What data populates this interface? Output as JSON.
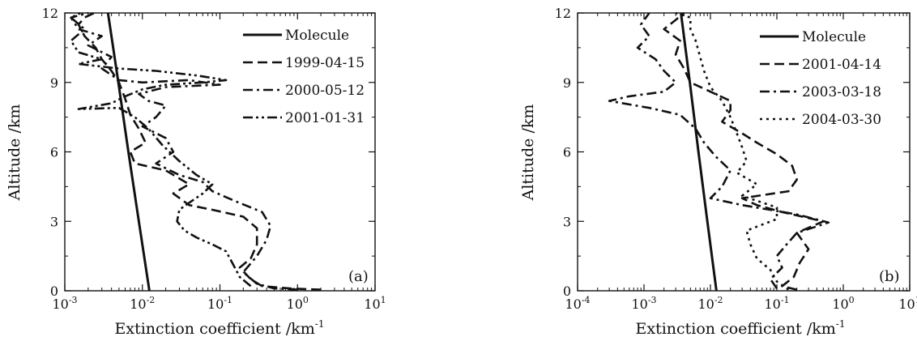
{
  "chart_data": [
    {
      "type": "line",
      "panel_label": "(a)",
      "xlabel": "Extinction coefficient /km",
      "xlabel_sup": "-1",
      "ylabel": "Altitude /km",
      "xscale": "log",
      "xlim": [
        0.001,
        10
      ],
      "ylim": [
        0,
        12
      ],
      "xticks": [
        {
          "v": 0.001,
          "base": "10",
          "exp": "-3"
        },
        {
          "v": 0.01,
          "base": "10",
          "exp": "-2"
        },
        {
          "v": 0.1,
          "base": "10",
          "exp": "-1"
        },
        {
          "v": 1,
          "base": "10",
          "exp": "0"
        },
        {
          "v": 10,
          "base": "10",
          "exp": "1"
        }
      ],
      "yticks": [
        0,
        3,
        6,
        9,
        12
      ],
      "legend_position": "top-right",
      "series": [
        {
          "name": "Molecule",
          "style": "solid",
          "points": [
            [
              0.0123,
              0
            ],
            [
              0.009,
              3
            ],
            [
              0.0066,
              6
            ],
            [
              0.0049,
              9
            ],
            [
              0.0036,
              12
            ]
          ]
        },
        {
          "name": "1999-04-15",
          "style": "dash",
          "points": [
            [
              2.0,
              0.05
            ],
            [
              0.8,
              0.1
            ],
            [
              0.35,
              0.2
            ],
            [
              0.25,
              0.5
            ],
            [
              0.18,
              1.0
            ],
            [
              0.25,
              1.4
            ],
            [
              0.3,
              2.0
            ],
            [
              0.3,
              2.7
            ],
            [
              0.2,
              3.2
            ],
            [
              0.08,
              3.5
            ],
            [
              0.04,
              3.7
            ],
            [
              0.025,
              4.2
            ],
            [
              0.04,
              4.6
            ],
            [
              0.02,
              5.2
            ],
            [
              0.008,
              5.5
            ],
            [
              0.007,
              6.0
            ],
            [
              0.011,
              6.4
            ],
            [
              0.009,
              7.0
            ],
            [
              0.007,
              7.6
            ],
            [
              0.006,
              8.3
            ],
            [
              0.005,
              9.0
            ],
            [
              0.004,
              9.5
            ],
            [
              0.003,
              10.0
            ],
            [
              0.0025,
              10.5
            ],
            [
              0.0018,
              11.0
            ],
            [
              0.0015,
              11.5
            ],
            [
              0.0018,
              11.8
            ],
            [
              0.0024,
              12
            ]
          ]
        },
        {
          "name": "2000-05-12",
          "style": "dashdot",
          "points": [
            [
              1.0,
              0.05
            ],
            [
              0.5,
              0.1
            ],
            [
              0.3,
              0.3
            ],
            [
              0.2,
              0.8
            ],
            [
              0.3,
              1.5
            ],
            [
              0.4,
              2.2
            ],
            [
              0.45,
              2.8
            ],
            [
              0.35,
              3.4
            ],
            [
              0.15,
              3.9
            ],
            [
              0.08,
              4.3
            ],
            [
              0.06,
              4.7
            ],
            [
              0.03,
              5.0
            ],
            [
              0.015,
              5.5
            ],
            [
              0.025,
              6.0
            ],
            [
              0.02,
              6.6
            ],
            [
              0.01,
              7.1
            ],
            [
              0.015,
              7.5
            ],
            [
              0.02,
              8.0
            ],
            [
              0.012,
              8.2
            ],
            [
              0.009,
              8.5
            ],
            [
              0.02,
              8.8
            ],
            [
              0.1,
              8.9
            ],
            [
              0.04,
              9.1
            ],
            [
              0.01,
              9.0
            ],
            [
              0.005,
              9.1
            ],
            [
              0.003,
              9.6
            ],
            [
              0.004,
              10.1
            ],
            [
              0.002,
              10.6
            ],
            [
              0.003,
              11.0
            ],
            [
              0.0015,
              11.3
            ],
            [
              0.0012,
              11.8
            ],
            [
              0.002,
              12
            ]
          ]
        },
        {
          "name": "2001-01-31",
          "style": "dashdotdot",
          "points": [
            [
              0.25,
              0.2
            ],
            [
              0.18,
              0.6
            ],
            [
              0.15,
              1.1
            ],
            [
              0.12,
              1.7
            ],
            [
              0.08,
              2.0
            ],
            [
              0.05,
              2.3
            ],
            [
              0.035,
              2.6
            ],
            [
              0.028,
              3.0
            ],
            [
              0.03,
              3.5
            ],
            [
              0.04,
              3.8
            ],
            [
              0.06,
              4.2
            ],
            [
              0.08,
              4.6
            ],
            [
              0.05,
              5.0
            ],
            [
              0.03,
              5.6
            ],
            [
              0.018,
              6.3
            ],
            [
              0.012,
              7.0
            ],
            [
              0.008,
              7.5
            ],
            [
              0.005,
              7.9
            ],
            [
              0.0015,
              7.85
            ],
            [
              0.004,
              8.1
            ],
            [
              0.006,
              8.4
            ],
            [
              0.01,
              8.7
            ],
            [
              0.02,
              8.9
            ],
            [
              0.06,
              9.0
            ],
            [
              0.12,
              9.1
            ],
            [
              0.05,
              9.3
            ],
            [
              0.015,
              9.5
            ],
            [
              0.005,
              9.6
            ],
            [
              0.0015,
              9.8
            ],
            [
              0.003,
              10.0
            ],
            [
              0.0015,
              10.3
            ],
            [
              0.0012,
              10.8
            ],
            [
              0.0018,
              11.3
            ],
            [
              0.0012,
              11.8
            ],
            [
              0.0016,
              12
            ]
          ]
        }
      ]
    },
    {
      "type": "line",
      "panel_label": "(b)",
      "xlabel": "Extinction coefficient /km",
      "xlabel_sup": "-1",
      "ylabel": "Altitude /km",
      "xscale": "log",
      "xlim": [
        0.0001,
        10
      ],
      "ylim": [
        0,
        12
      ],
      "xticks": [
        {
          "v": 0.0001,
          "base": "10",
          "exp": "-4"
        },
        {
          "v": 0.001,
          "base": "10",
          "exp": "-3"
        },
        {
          "v": 0.01,
          "base": "10",
          "exp": "-2"
        },
        {
          "v": 0.1,
          "base": "10",
          "exp": "-1"
        },
        {
          "v": 1,
          "base": "10",
          "exp": "0"
        },
        {
          "v": 10,
          "base": "10",
          "exp": "1"
        }
      ],
      "yticks": [
        0,
        3,
        6,
        9,
        12
      ],
      "legend_position": "top-right",
      "series": [
        {
          "name": "Molecule",
          "style": "solid",
          "points": [
            [
              0.0123,
              0
            ],
            [
              0.009,
              3
            ],
            [
              0.0066,
              6
            ],
            [
              0.0049,
              9
            ],
            [
              0.0036,
              12
            ]
          ]
        },
        {
          "name": "2001-04-14",
          "style": "dash",
          "points": [
            [
              0.2,
              0.05
            ],
            [
              0.12,
              0.2
            ],
            [
              0.18,
              0.6
            ],
            [
              0.22,
              1.2
            ],
            [
              0.3,
              1.8
            ],
            [
              0.2,
              2.5
            ],
            [
              0.5,
              3.0
            ],
            [
              0.12,
              3.4
            ],
            [
              0.05,
              3.7
            ],
            [
              0.03,
              4.0
            ],
            [
              0.15,
              4.3
            ],
            [
              0.2,
              4.8
            ],
            [
              0.17,
              5.4
            ],
            [
              0.1,
              5.9
            ],
            [
              0.05,
              6.4
            ],
            [
              0.03,
              6.8
            ],
            [
              0.015,
              7.3
            ],
            [
              0.02,
              7.8
            ],
            [
              0.02,
              8.2
            ],
            [
              0.01,
              8.6
            ],
            [
              0.005,
              9.0
            ],
            [
              0.004,
              9.6
            ],
            [
              0.003,
              10.2
            ],
            [
              0.0035,
              10.8
            ],
            [
              0.002,
              11.3
            ],
            [
              0.003,
              11.7
            ],
            [
              0.004,
              12
            ]
          ]
        },
        {
          "name": "2003-03-18",
          "style": "dashdot",
          "points": [
            [
              0.1,
              0.1
            ],
            [
              0.08,
              0.5
            ],
            [
              0.12,
              1.0
            ],
            [
              0.1,
              1.5
            ],
            [
              0.14,
              2.0
            ],
            [
              0.2,
              2.5
            ],
            [
              0.6,
              2.95
            ],
            [
              0.2,
              3.3
            ],
            [
              0.03,
              3.7
            ],
            [
              0.01,
              4.0
            ],
            [
              0.015,
              4.5
            ],
            [
              0.02,
              5.2
            ],
            [
              0.012,
              5.8
            ],
            [
              0.008,
              6.4
            ],
            [
              0.006,
              7.0
            ],
            [
              0.0035,
              7.6
            ],
            [
              0.0012,
              7.9
            ],
            [
              0.0003,
              8.2
            ],
            [
              0.0006,
              8.4
            ],
            [
              0.002,
              8.6
            ],
            [
              0.003,
              9.0
            ],
            [
              0.002,
              9.5
            ],
            [
              0.0015,
              10.0
            ],
            [
              0.0008,
              10.5
            ],
            [
              0.0012,
              11.0
            ],
            [
              0.0009,
              11.5
            ],
            [
              0.0012,
              12
            ]
          ]
        },
        {
          "name": "2004-03-30",
          "style": "dot",
          "points": [
            [
              0.15,
              0.05
            ],
            [
              0.1,
              0.4
            ],
            [
              0.08,
              0.9
            ],
            [
              0.05,
              1.4
            ],
            [
              0.04,
              2.0
            ],
            [
              0.035,
              2.6
            ],
            [
              0.1,
              3.1
            ],
            [
              0.1,
              3.6
            ],
            [
              0.03,
              4.1
            ],
            [
              0.05,
              4.6
            ],
            [
              0.025,
              5.1
            ],
            [
              0.035,
              5.6
            ],
            [
              0.03,
              6.2
            ],
            [
              0.025,
              6.8
            ],
            [
              0.02,
              7.5
            ],
            [
              0.015,
              8.2
            ],
            [
              0.01,
              8.8
            ],
            [
              0.008,
              9.5
            ],
            [
              0.007,
              10.1
            ],
            [
              0.006,
              10.8
            ],
            [
              0.005,
              11.3
            ],
            [
              0.005,
              11.8
            ],
            [
              0.003,
              12
            ]
          ]
        }
      ]
    }
  ]
}
